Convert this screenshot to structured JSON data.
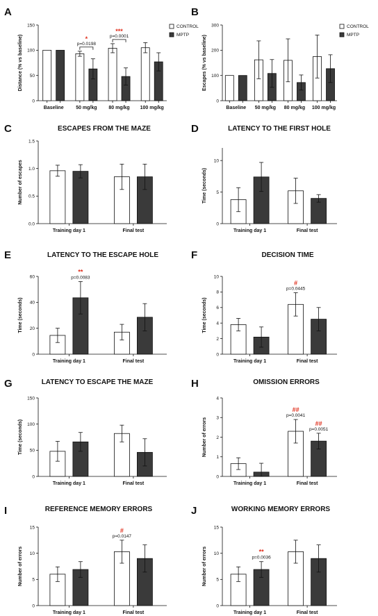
{
  "colors": {
    "control": "#ffffff",
    "mptp": "#3a3a3a",
    "significance": "#e0301e",
    "stroke": "#111111"
  },
  "legend": {
    "control": "CONTROL",
    "mptp": "MPTP"
  },
  "chart_data": [
    {
      "panel": "A",
      "type": "bar",
      "title": "",
      "ylabel": "Distance (% vs baseline)",
      "ylim": [
        0,
        150
      ],
      "yticks": [
        0,
        50,
        100,
        150
      ],
      "categories": [
        "Baseline",
        "50 mg/kg",
        "80 mg/kg",
        "100 mg/kg"
      ],
      "series": [
        {
          "name": "CONTROL",
          "values": [
            100,
            93,
            104,
            105
          ],
          "errors": [
            0,
            5,
            9,
            10
          ]
        },
        {
          "name": "MPTP",
          "values": [
            100,
            63,
            48,
            77
          ],
          "errors": [
            0,
            20,
            17,
            18
          ]
        }
      ],
      "annotations": [
        {
          "category": 1,
          "stars": "*",
          "text": "p=0.0198",
          "bracket": true
        },
        {
          "category": 2,
          "stars": "***",
          "text": "p=0.0001",
          "bracket": true
        }
      ],
      "legend": "top-right"
    },
    {
      "panel": "B",
      "type": "bar",
      "title": "",
      "ylabel": "Escapes (% vs baseline)",
      "ylim": [
        0,
        300
      ],
      "yticks": [
        0,
        100,
        200,
        300
      ],
      "categories": [
        "Baseline",
        "50 mg/kg",
        "80 mg/kg",
        "100 mg/kg"
      ],
      "series": [
        {
          "name": "CONTROL",
          "values": [
            100,
            162,
            160,
            175
          ],
          "errors": [
            0,
            75,
            85,
            85
          ]
        },
        {
          "name": "MPTP",
          "values": [
            100,
            108,
            72,
            127
          ],
          "errors": [
            0,
            55,
            30,
            55
          ]
        }
      ],
      "annotations": [],
      "legend": "top-right"
    },
    {
      "panel": "C",
      "type": "bar",
      "title": "ESCAPES FROM THE MAZE",
      "ylabel": "Number of escapes",
      "ylim": [
        0,
        1.5
      ],
      "yticks": [
        0.0,
        0.5,
        1.0,
        1.5
      ],
      "categories": [
        "Training day 1",
        "Final test"
      ],
      "series": [
        {
          "name": "CONTROL",
          "values": [
            0.96,
            0.85
          ],
          "errors": [
            0.1,
            0.23
          ]
        },
        {
          "name": "MPTP",
          "values": [
            0.95,
            0.85
          ],
          "errors": [
            0.12,
            0.23
          ]
        }
      ],
      "annotations": []
    },
    {
      "panel": "D",
      "type": "bar",
      "title": "LATENCY TO THE FIRST HOLE",
      "ylabel": "Time (seconds)",
      "ylim": [
        0,
        12
      ],
      "yticks": [
        0,
        5,
        10
      ],
      "categories": [
        "Training day 1",
        "Final test"
      ],
      "series": [
        {
          "name": "CONTROL",
          "values": [
            3.8,
            5.2
          ],
          "errors": [
            1.9,
            2.0
          ]
        },
        {
          "name": "MPTP",
          "values": [
            7.4,
            4.0
          ],
          "errors": [
            2.3,
            0.6
          ]
        }
      ],
      "annotations": []
    },
    {
      "panel": "E",
      "type": "bar",
      "title": "LATENCY TO THE ESCAPE HOLE",
      "ylabel": "Time (seconds)",
      "ylim": [
        0,
        60
      ],
      "yticks": [
        0,
        20,
        40,
        60
      ],
      "categories": [
        "Training day 1",
        "Final test"
      ],
      "series": [
        {
          "name": "CONTROL",
          "values": [
            14.5,
            17
          ],
          "errors": [
            5.5,
            6
          ]
        },
        {
          "name": "MPTP",
          "values": [
            43.5,
            28.5
          ],
          "errors": [
            12.5,
            10.5
          ]
        }
      ],
      "annotations": [
        {
          "category": 0,
          "series": 1,
          "stars": "**",
          "text": "p=0.0083"
        }
      ]
    },
    {
      "panel": "F",
      "type": "bar",
      "title": "DECISION TIME",
      "ylabel": "Time (seconds)",
      "ylim": [
        0,
        10
      ],
      "yticks": [
        0,
        2,
        4,
        6,
        8,
        10
      ],
      "categories": [
        "Training day 1",
        "Final test"
      ],
      "series": [
        {
          "name": "CONTROL",
          "values": [
            3.8,
            6.4
          ],
          "errors": [
            0.8,
            1.5
          ]
        },
        {
          "name": "MPTP",
          "values": [
            2.2,
            4.5
          ],
          "errors": [
            1.3,
            1.5
          ]
        }
      ],
      "annotations": [
        {
          "category": 1,
          "series": 0,
          "stars": "#",
          "text": "p=0.0445"
        }
      ]
    },
    {
      "panel": "G",
      "type": "bar",
      "title": "LATENCY TO ESCAPE THE MAZE",
      "ylabel": "Time (seconds)",
      "ylim": [
        0,
        150
      ],
      "yticks": [
        0,
        50,
        100,
        150
      ],
      "categories": [
        "Training day 1",
        "Final test"
      ],
      "series": [
        {
          "name": "CONTROL",
          "values": [
            48,
            82
          ],
          "errors": [
            19,
            16
          ]
        },
        {
          "name": "MPTP",
          "values": [
            66,
            46
          ],
          "errors": [
            18,
            26
          ]
        }
      ],
      "annotations": []
    },
    {
      "panel": "H",
      "type": "bar",
      "title": "OMISSION ERRORS",
      "ylabel": "Number of errors",
      "ylim": [
        0,
        4
      ],
      "yticks": [
        0,
        1,
        2,
        3,
        4
      ],
      "categories": [
        "Training day 1",
        "Final test"
      ],
      "series": [
        {
          "name": "CONTROL",
          "values": [
            0.65,
            2.3
          ],
          "errors": [
            0.3,
            0.6
          ]
        },
        {
          "name": "MPTP",
          "values": [
            0.22,
            1.8
          ],
          "errors": [
            0.45,
            0.4
          ]
        }
      ],
      "annotations": [
        {
          "category": 1,
          "series": 0,
          "stars": "##",
          "text": "p=0.0041"
        },
        {
          "category": 1,
          "series": 1,
          "stars": "##",
          "text": "p=0.0051"
        }
      ]
    },
    {
      "panel": "I",
      "type": "bar",
      "title": "REFERENCE MEMORY ERRORS",
      "ylabel": "Number of errors",
      "ylim": [
        0,
        15
      ],
      "yticks": [
        0,
        5,
        10,
        15
      ],
      "categories": [
        "Training day 1",
        "Final test"
      ],
      "series": [
        {
          "name": "CONTROL",
          "values": [
            6.0,
            10.3
          ],
          "errors": [
            1.4,
            2.2
          ]
        },
        {
          "name": "MPTP",
          "values": [
            6.9,
            9.0
          ],
          "errors": [
            1.5,
            2.6
          ]
        }
      ],
      "annotations": [
        {
          "category": 1,
          "series": 0,
          "stars": "#",
          "text": "p=0.0147"
        }
      ]
    },
    {
      "panel": "J",
      "type": "bar",
      "title": "WORKING MEMORY ERRORS",
      "ylabel": "Number of errors",
      "ylim": [
        0,
        15
      ],
      "yticks": [
        0,
        5,
        10,
        15
      ],
      "categories": [
        "Training day 1",
        "Final test"
      ],
      "series": [
        {
          "name": "CONTROL",
          "values": [
            6.0,
            10.3
          ],
          "errors": [
            1.4,
            2.2
          ]
        },
        {
          "name": "MPTP",
          "values": [
            6.9,
            9.0
          ],
          "errors": [
            1.5,
            2.6
          ]
        }
      ],
      "annotations": [
        {
          "category": 0,
          "series": 1,
          "stars": "**",
          "text": "p=0.0036"
        }
      ]
    }
  ]
}
